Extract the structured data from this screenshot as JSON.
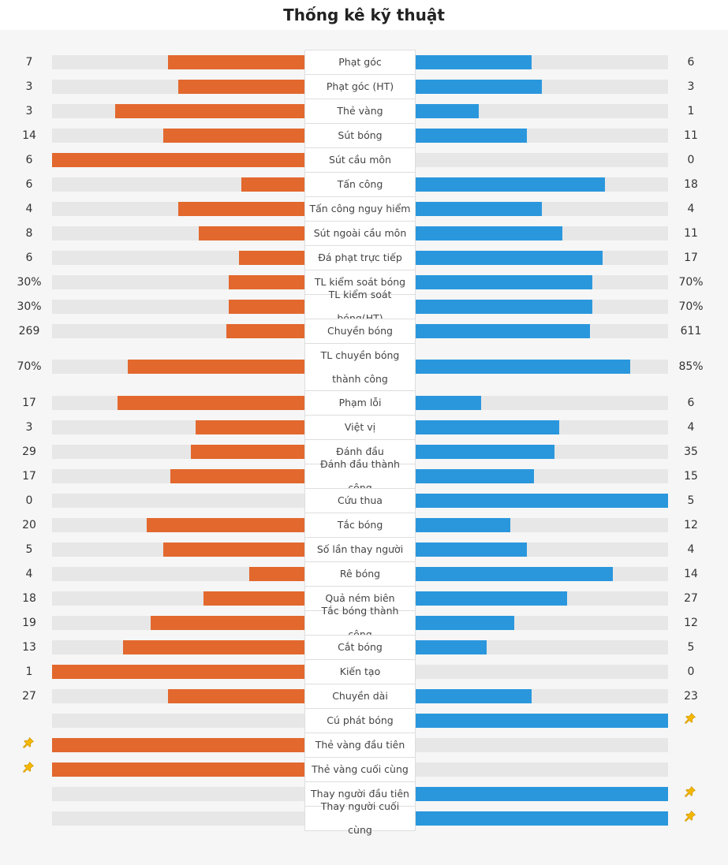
{
  "title": "Thống kê kỹ thuật",
  "colors": {
    "home": "#e2682e",
    "away": "#2a97dd",
    "track": "#e7e7e7"
  },
  "chart_data": {
    "type": "bar",
    "orientation": "diverging-horizontal",
    "series": [
      {
        "name": "home",
        "values": [
          7,
          3,
          3,
          14,
          6,
          6,
          4,
          8,
          6,
          30,
          30,
          269,
          70,
          17,
          3,
          29,
          17,
          0,
          20,
          5,
          4,
          18,
          19,
          13,
          1,
          27,
          null,
          null,
          null,
          null,
          null
        ]
      },
      {
        "name": "away",
        "values": [
          6,
          3,
          1,
          11,
          0,
          18,
          4,
          11,
          17,
          70,
          70,
          611,
          85,
          6,
          4,
          35,
          15,
          5,
          12,
          4,
          14,
          27,
          12,
          5,
          0,
          23,
          null,
          null,
          null,
          null,
          null
        ]
      }
    ],
    "rows": [
      {
        "label": "Phạt góc",
        "home": "7",
        "away": "6",
        "home_frac": 0.54,
        "away_frac": 0.46
      },
      {
        "label": "Phạt góc (HT)",
        "home": "3",
        "away": "3",
        "home_frac": 0.5,
        "away_frac": 0.5
      },
      {
        "label": "Thẻ vàng",
        "home": "3",
        "away": "1",
        "home_frac": 0.75,
        "away_frac": 0.25
      },
      {
        "label": "Sút bóng",
        "home": "14",
        "away": "11",
        "home_frac": 0.56,
        "away_frac": 0.44
      },
      {
        "label": "Sút cầu môn",
        "home": "6",
        "away": "0",
        "home_frac": 1.0,
        "away_frac": 0.0
      },
      {
        "label": "Tấn công",
        "home": "6",
        "away": "18",
        "home_frac": 0.25,
        "away_frac": 0.75
      },
      {
        "label": "Tấn công nguy hiểm",
        "home": "4",
        "away": "4",
        "home_frac": 0.5,
        "away_frac": 0.5
      },
      {
        "label": "Sút ngoài cầu môn",
        "home": "8",
        "away": "11",
        "home_frac": 0.42,
        "away_frac": 0.58
      },
      {
        "label": "Đá phạt trực tiếp",
        "home": "6",
        "away": "17",
        "home_frac": 0.26,
        "away_frac": 0.74
      },
      {
        "label": "TL kiểm soát bóng",
        "home": "30%",
        "away": "70%",
        "home_frac": 0.3,
        "away_frac": 0.7
      },
      {
        "label": "TL kiểm soát bóng(HT)",
        "home": "30%",
        "away": "70%",
        "home_frac": 0.3,
        "away_frac": 0.7
      },
      {
        "label": "Chuyền bóng",
        "home": "269",
        "away": "611",
        "home_frac": 0.31,
        "away_frac": 0.69
      },
      {
        "label": "TL chuyền bóng thành công",
        "home": "70%",
        "away": "85%",
        "home_frac": 0.7,
        "away_frac": 0.85,
        "tall": true
      },
      {
        "label": "Phạm lỗi",
        "home": "17",
        "away": "6",
        "home_frac": 0.74,
        "away_frac": 0.26
      },
      {
        "label": "Việt vị",
        "home": "3",
        "away": "4",
        "home_frac": 0.43,
        "away_frac": 0.57
      },
      {
        "label": "Đánh đầu",
        "home": "29",
        "away": "35",
        "home_frac": 0.45,
        "away_frac": 0.55
      },
      {
        "label": "Đánh đầu thành công",
        "home": "17",
        "away": "15",
        "home_frac": 0.53,
        "away_frac": 0.47
      },
      {
        "label": "Cứu thua",
        "home": "0",
        "away": "5",
        "home_frac": 0.0,
        "away_frac": 1.0
      },
      {
        "label": "Tắc bóng",
        "home": "20",
        "away": "12",
        "home_frac": 0.625,
        "away_frac": 0.375
      },
      {
        "label": "Số lần thay người",
        "home": "5",
        "away": "4",
        "home_frac": 0.56,
        "away_frac": 0.44
      },
      {
        "label": "Rê bóng",
        "home": "4",
        "away": "14",
        "home_frac": 0.22,
        "away_frac": 0.78
      },
      {
        "label": "Quả ném biên",
        "home": "18",
        "away": "27",
        "home_frac": 0.4,
        "away_frac": 0.6
      },
      {
        "label": "Tắc bóng thành công",
        "home": "19",
        "away": "12",
        "home_frac": 0.61,
        "away_frac": 0.39
      },
      {
        "label": "Cắt bóng",
        "home": "13",
        "away": "5",
        "home_frac": 0.72,
        "away_frac": 0.28
      },
      {
        "label": "Kiến tạo",
        "home": "1",
        "away": "0",
        "home_frac": 1.0,
        "away_frac": 0.0
      },
      {
        "label": "Chuyền dài",
        "home": "27",
        "away": "23",
        "home_frac": 0.54,
        "away_frac": 0.46
      },
      {
        "label": "Cú phát bóng",
        "home": "",
        "away": "",
        "home_frac": 0.0,
        "away_frac": 1.0,
        "pin": "away"
      },
      {
        "label": "Thẻ vàng đầu tiên",
        "home": "",
        "away": "",
        "home_frac": 1.0,
        "away_frac": 0.0,
        "pin": "home"
      },
      {
        "label": "Thẻ vàng cuối cùng",
        "home": "",
        "away": "",
        "home_frac": 1.0,
        "away_frac": 0.0,
        "pin": "home"
      },
      {
        "label": "Thay người đầu tiên",
        "home": "",
        "away": "",
        "home_frac": 0.0,
        "away_frac": 1.0,
        "pin": "away"
      },
      {
        "label": "Thay người cuối cùng",
        "home": "",
        "away": "",
        "home_frac": 0.0,
        "away_frac": 1.0,
        "pin": "away"
      }
    ]
  }
}
